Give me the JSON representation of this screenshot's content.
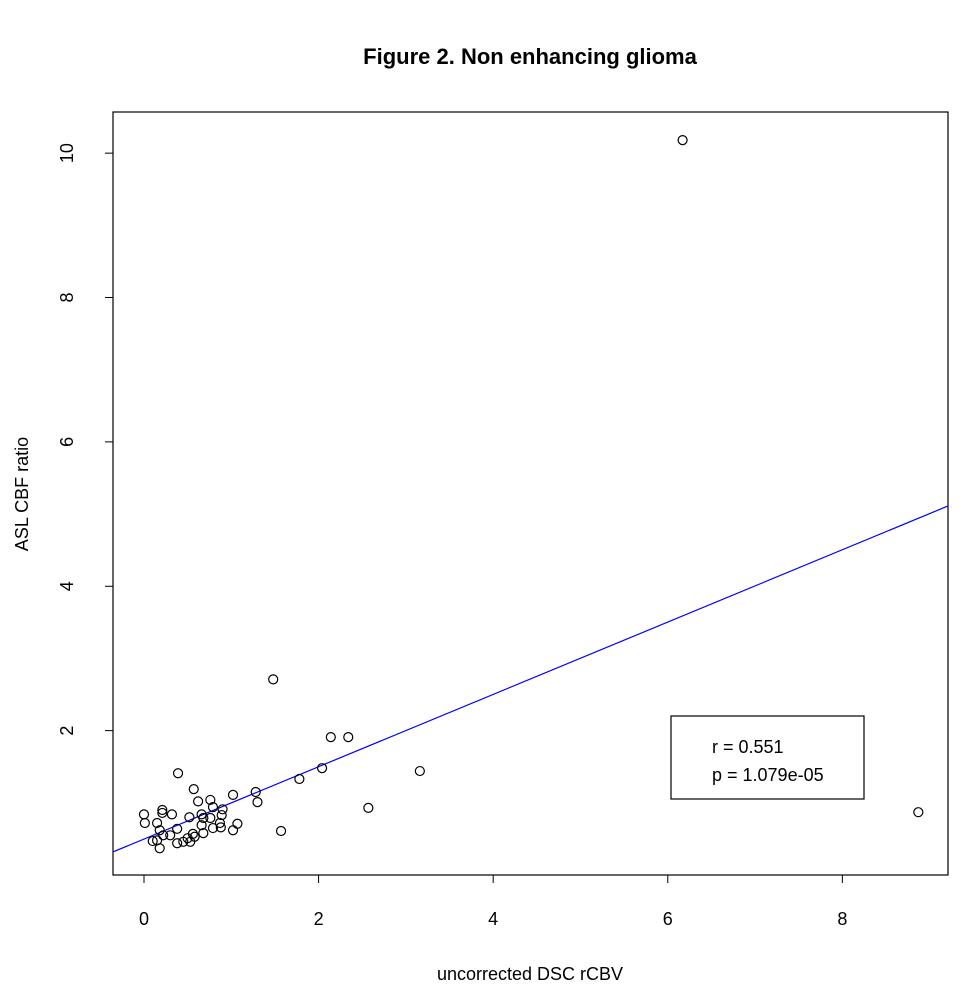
{
  "chart_data": {
    "type": "scatter",
    "title": "Figure 2. Non enhancing glioma",
    "xlabel": "uncorrected DSC rCBV",
    "ylabel": "ASL CBF ratio",
    "xlim": [
      -0.355,
      9.21
    ],
    "ylim": [
      0,
      10.57
    ],
    "xticks": [
      0,
      2,
      4,
      6,
      8
    ],
    "yticks": [
      2,
      4,
      6,
      8,
      10
    ],
    "grid": false,
    "points": [
      [
        0.39,
        1.41
      ],
      [
        0.57,
        1.19
      ],
      [
        0.62,
        1.02
      ],
      [
        0.76,
        1.04
      ],
      [
        1.02,
        1.11
      ],
      [
        1.28,
        1.15
      ],
      [
        1.3,
        1.01
      ],
      [
        0.0,
        0.84
      ],
      [
        0.01,
        0.72
      ],
      [
        0.21,
        0.9
      ],
      [
        0.21,
        0.86
      ],
      [
        0.32,
        0.84
      ],
      [
        0.15,
        0.72
      ],
      [
        0.18,
        0.62
      ],
      [
        0.22,
        0.55
      ],
      [
        0.38,
        0.64
      ],
      [
        0.52,
        0.8
      ],
      [
        0.66,
        0.84
      ],
      [
        0.68,
        0.79
      ],
      [
        0.76,
        0.79
      ],
      [
        0.79,
        0.94
      ],
      [
        0.9,
        0.91
      ],
      [
        0.89,
        0.83
      ],
      [
        0.87,
        0.72
      ],
      [
        0.66,
        0.69
      ],
      [
        0.68,
        0.58
      ],
      [
        0.79,
        0.65
      ],
      [
        0.88,
        0.66
      ],
      [
        1.07,
        0.71
      ],
      [
        1.02,
        0.62
      ],
      [
        0.1,
        0.47
      ],
      [
        0.15,
        0.48
      ],
      [
        0.18,
        0.37
      ],
      [
        0.3,
        0.55
      ],
      [
        0.38,
        0.44
      ],
      [
        0.45,
        0.46
      ],
      [
        0.5,
        0.51
      ],
      [
        0.56,
        0.57
      ],
      [
        0.58,
        0.53
      ],
      [
        0.53,
        0.46
      ],
      [
        1.48,
        2.71
      ],
      [
        2.14,
        1.91
      ],
      [
        2.34,
        1.91
      ],
      [
        2.04,
        1.48
      ],
      [
        1.78,
        1.33
      ],
      [
        3.16,
        1.44
      ],
      [
        2.57,
        0.93
      ],
      [
        1.57,
        0.61
      ],
      [
        6.17,
        10.18
      ],
      [
        8.87,
        0.87
      ]
    ],
    "fit_line": {
      "slope": 0.501,
      "intercept": 0.498,
      "color": "#0000ff"
    },
    "legend": {
      "placement": "bottom-right",
      "lines": [
        "r = 0.551",
        "p = 1.079e-05"
      ]
    }
  }
}
